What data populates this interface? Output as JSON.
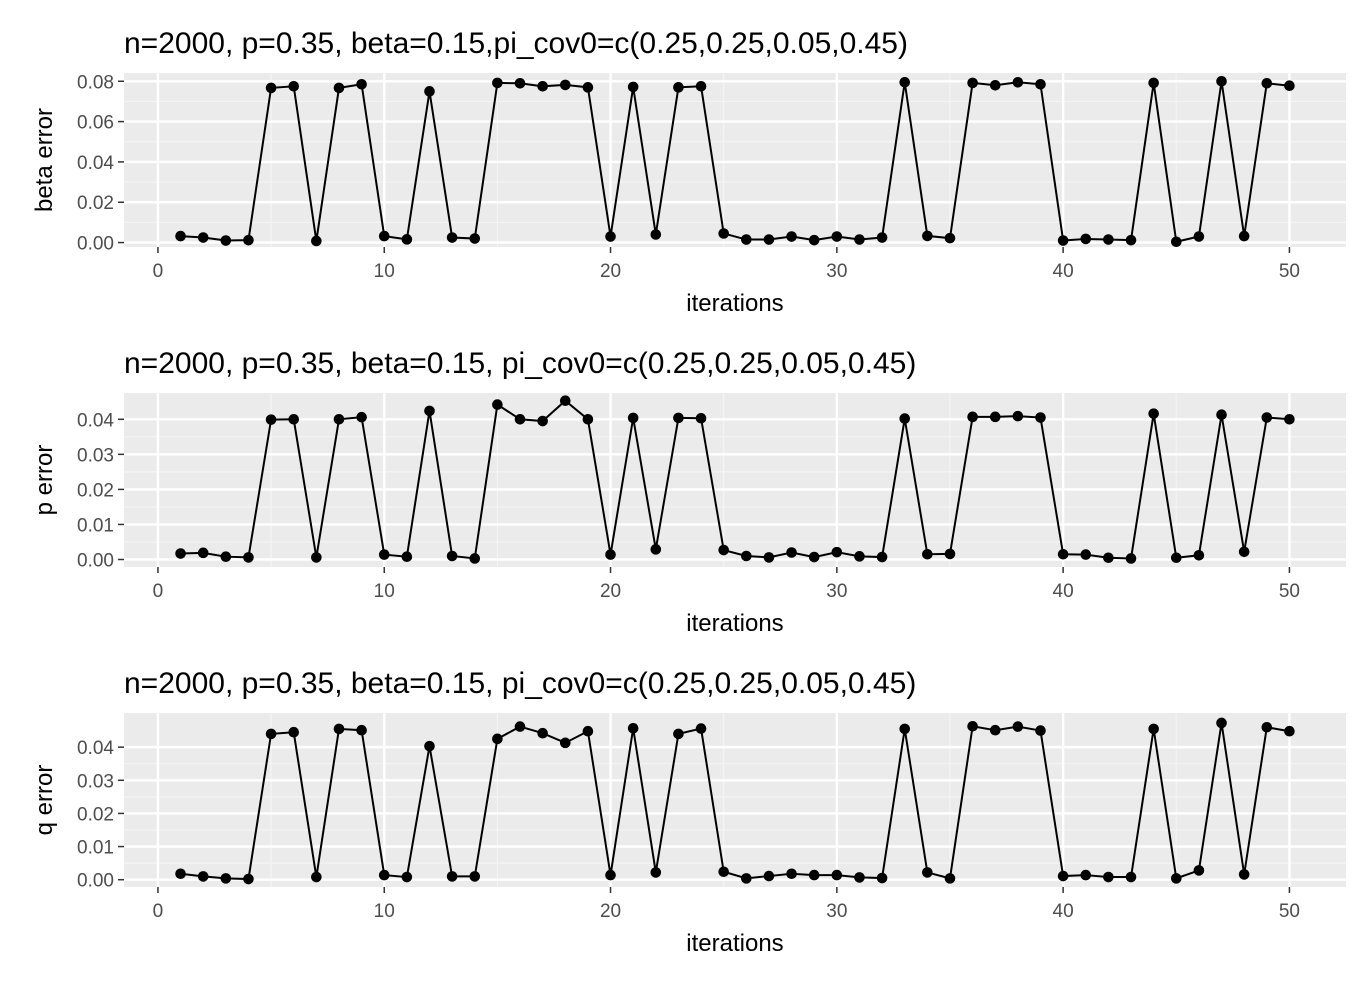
{
  "style": {
    "panel_bg": "#ebebeb",
    "grid_major": "#ffffff",
    "grid_minor": "#f4f4f4",
    "line_color": "#000000",
    "point_color": "#000000",
    "tick_color": "#333333"
  },
  "chart_data": [
    {
      "type": "line",
      "title": "n=2000, p=0.35, beta=0.15,pi_cov0=c(0.25,0.25,0.05,0.45)",
      "xlabel": "iterations",
      "ylabel": "beta error",
      "xlim": [
        -1.5,
        52.5
      ],
      "ylim": [
        -0.0022,
        0.0841
      ],
      "x_ticks": [
        0,
        10,
        20,
        30,
        40,
        50
      ],
      "x_tick_labels": [
        "0",
        "10",
        "20",
        "30",
        "40",
        "50"
      ],
      "y_ticks": [
        0,
        0.02,
        0.04,
        0.06,
        0.08
      ],
      "y_tick_labels": [
        "0.00",
        "0.02",
        "0.04",
        "0.06",
        "0.08"
      ],
      "grid": true,
      "series": [
        {
          "x": [
            1,
            2,
            3,
            4,
            5,
            6,
            7,
            8,
            9,
            10,
            11,
            12,
            13,
            14,
            15,
            16,
            17,
            18,
            19,
            20,
            21,
            22,
            23,
            24,
            25,
            26,
            27,
            28,
            29,
            30,
            31,
            32,
            33,
            34,
            35,
            36,
            37,
            38,
            39,
            40,
            41,
            42,
            43,
            44,
            45,
            46,
            47,
            48,
            49,
            50
          ],
          "values": [
            0.0032,
            0.0025,
            0.001,
            0.0012,
            0.0767,
            0.0775,
            0.0008,
            0.0767,
            0.0785,
            0.0032,
            0.0016,
            0.075,
            0.0025,
            0.002,
            0.0792,
            0.079,
            0.0775,
            0.0782,
            0.077,
            0.003,
            0.0772,
            0.004,
            0.077,
            0.0775,
            0.0045,
            0.0015,
            0.0015,
            0.003,
            0.0012,
            0.003,
            0.0015,
            0.0025,
            0.0795,
            0.0033,
            0.0022,
            0.0792,
            0.078,
            0.0795,
            0.0785,
            0.001,
            0.0018,
            0.0015,
            0.0012,
            0.0792,
            0.0004,
            0.003,
            0.08,
            0.0032,
            0.079,
            0.0778
          ]
        }
      ]
    },
    {
      "type": "line",
      "title": "n=2000, p=0.35, beta=0.15, pi_cov0=c(0.25,0.25,0.05,0.45)",
      "xlabel": "iterations",
      "ylabel": "p error",
      "xlim": [
        -1.5,
        52.5
      ],
      "ylim": [
        -0.00214,
        0.0475
      ],
      "x_ticks": [
        0,
        10,
        20,
        30,
        40,
        50
      ],
      "x_tick_labels": [
        "0",
        "10",
        "20",
        "30",
        "40",
        "50"
      ],
      "y_ticks": [
        0,
        0.01,
        0.02,
        0.03,
        0.04
      ],
      "y_tick_labels": [
        "0.00",
        "0.01",
        "0.02",
        "0.03",
        "0.04"
      ],
      "grid": true,
      "series": [
        {
          "x": [
            1,
            2,
            3,
            4,
            5,
            6,
            7,
            8,
            9,
            10,
            11,
            12,
            13,
            14,
            15,
            16,
            17,
            18,
            19,
            20,
            21,
            22,
            23,
            24,
            25,
            26,
            27,
            28,
            29,
            30,
            31,
            32,
            33,
            34,
            35,
            36,
            37,
            38,
            39,
            40,
            41,
            42,
            43,
            44,
            45,
            46,
            47,
            48,
            49,
            50
          ],
          "values": [
            0.0017,
            0.0019,
            0.0008,
            0.0006,
            0.0399,
            0.04,
            0.0006,
            0.04,
            0.0406,
            0.0014,
            0.0008,
            0.0424,
            0.001,
            0.0003,
            0.0442,
            0.04,
            0.0395,
            0.0453,
            0.04,
            0.0014,
            0.0404,
            0.0029,
            0.0404,
            0.0403,
            0.0027,
            0.001,
            0.0006,
            0.002,
            0.0007,
            0.0021,
            0.0009,
            0.0007,
            0.0402,
            0.0015,
            0.0016,
            0.0407,
            0.0407,
            0.0409,
            0.0405,
            0.0015,
            0.0014,
            0.0005,
            0.0003,
            0.0416,
            0.0005,
            0.0012,
            0.0413,
            0.0022,
            0.0405,
            0.04
          ]
        }
      ]
    },
    {
      "type": "line",
      "title": "n=2000, p=0.35, beta=0.15, pi_cov0=c(0.25,0.25,0.05,0.45)",
      "xlabel": "iterations",
      "ylabel": "q error",
      "xlim": [
        -1.5,
        52.5
      ],
      "ylim": [
        -0.0022,
        0.0503
      ],
      "x_ticks": [
        0,
        10,
        20,
        30,
        40,
        50
      ],
      "x_tick_labels": [
        "0",
        "10",
        "20",
        "30",
        "40",
        "50"
      ],
      "y_ticks": [
        0,
        0.01,
        0.02,
        0.03,
        0.04
      ],
      "y_tick_labels": [
        "0.00",
        "0.01",
        "0.02",
        "0.03",
        "0.04"
      ],
      "grid": true,
      "series": [
        {
          "x": [
            1,
            2,
            3,
            4,
            5,
            6,
            7,
            8,
            9,
            10,
            11,
            12,
            13,
            14,
            15,
            16,
            17,
            18,
            19,
            20,
            21,
            22,
            23,
            24,
            25,
            26,
            27,
            28,
            29,
            30,
            31,
            32,
            33,
            34,
            35,
            36,
            37,
            38,
            39,
            40,
            41,
            42,
            43,
            44,
            45,
            46,
            47,
            48,
            49,
            50
          ],
          "values": [
            0.0018,
            0.001,
            0.0004,
            0.0002,
            0.044,
            0.0445,
            0.0008,
            0.0455,
            0.0451,
            0.0014,
            0.0008,
            0.0403,
            0.001,
            0.001,
            0.0425,
            0.0462,
            0.0442,
            0.0413,
            0.0448,
            0.0014,
            0.0457,
            0.0022,
            0.044,
            0.0456,
            0.0024,
            0.0004,
            0.0011,
            0.0018,
            0.0014,
            0.0014,
            0.0007,
            0.0005,
            0.0455,
            0.0022,
            0.0004,
            0.0463,
            0.0451,
            0.0462,
            0.045,
            0.0011,
            0.0014,
            0.0008,
            0.0008,
            0.0455,
            0.0004,
            0.0028,
            0.0473,
            0.0016,
            0.046,
            0.0448
          ]
        }
      ]
    }
  ]
}
